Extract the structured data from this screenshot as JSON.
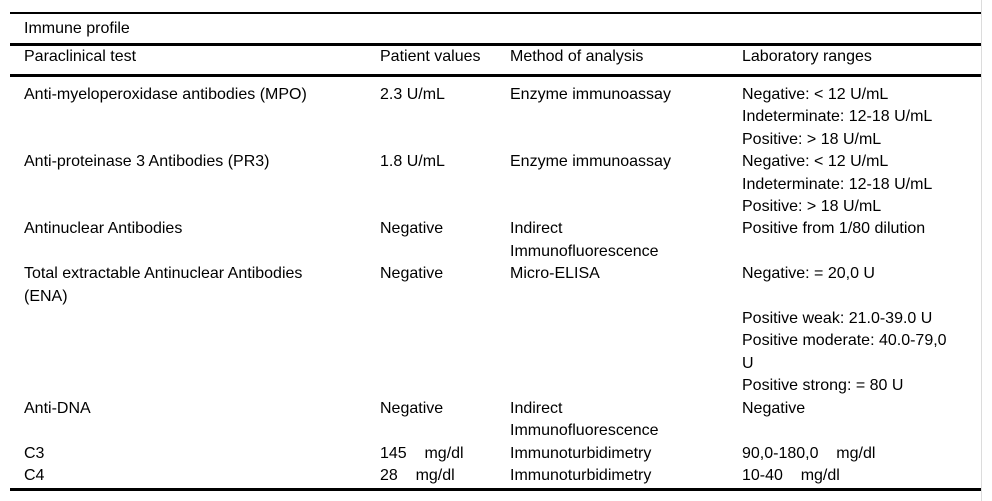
{
  "table": {
    "title": "Immune profile",
    "columns": {
      "test": "Paraclinical test",
      "value": "Patient values",
      "method": "Method of analysis",
      "ranges": "Laboratory ranges"
    },
    "rows": [
      {
        "test": "Anti-myeloperoxidase antibodies (MPO)",
        "value": "2.3 U/mL",
        "method": "Enzyme immunoassay",
        "ranges": "Negative: < 12 U/mL\nIndeterminate: 12-18 U/mL\nPositive: > 18 U/mL"
      },
      {
        "test": "Anti-proteinase 3 Antibodies (PR3)",
        "value": "1.8 U/mL",
        "method": "Enzyme immunoassay",
        "ranges": "Negative: < 12 U/mL\nIndeterminate: 12-18 U/mL\nPositive: > 18 U/mL"
      },
      {
        "test": "Antinuclear Antibodies",
        "value": "Negative",
        "method": "Indirect\nImmunofluorescence",
        "ranges": "Positive from 1/80 dilution"
      },
      {
        "test": "Total extractable Antinuclear Antibodies\n(ENA)",
        "value": "Negative",
        "method": "Micro-ELISA",
        "ranges": "Negative: = 20,0 U\n\nPositive weak: 21.0-39.0 U\nPositive moderate: 40.0-79,0\nU\nPositive strong: = 80 U"
      },
      {
        "test": "Anti-DNA",
        "value": "Negative",
        "method": "Indirect\nImmunofluorescence",
        "ranges": "Negative"
      },
      {
        "test": "C3",
        "value": "145    mg/dl",
        "method": "Immunoturbidimetry",
        "ranges": "90,0-180,0    mg/dl"
      },
      {
        "test": "C4",
        "value": "28    mg/dl",
        "method": "Immunoturbidimetry",
        "ranges": "10-40    mg/dl"
      }
    ]
  },
  "colors": {
    "background": "#ffffff",
    "text": "#000000",
    "rule": "#000000",
    "page_edge": "#dcdcdc"
  }
}
